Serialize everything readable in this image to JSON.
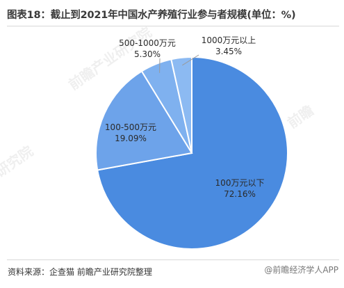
{
  "header": {
    "title": "图表18：截止到2021年中国水产养殖行业参与者规模(单位：%)"
  },
  "footer": {
    "source": "资料来源：企查猫 前瞻产业研究院整理",
    "mark": "@前瞻经济学人APP"
  },
  "colors": {
    "slice_100_below": "#4a8be0",
    "slice_100_500": "#6da3ea",
    "slice_500_1000": "#7fb1ef",
    "slice_1000_above": "#8cbaf2",
    "border": "#ffffff",
    "leader": "#9a9a9a",
    "label": "#2a2a2a"
  },
  "chart_data": {
    "type": "pie",
    "title": "图表18：截止到2021年中国水产养殖行业参与者规模(单位：%)",
    "slices": [
      {
        "label": "100万元以下",
        "value": 72.16,
        "value_label": "72.16%"
      },
      {
        "label": "100-500万元",
        "value": 19.09,
        "value_label": "19.09%"
      },
      {
        "label": "500-1000万元",
        "value": 5.3,
        "value_label": "5.30%"
      },
      {
        "label": "1000万元以上",
        "value": 3.45,
        "value_label": "3.45%"
      }
    ],
    "start": "top",
    "direction": "clockwise"
  }
}
